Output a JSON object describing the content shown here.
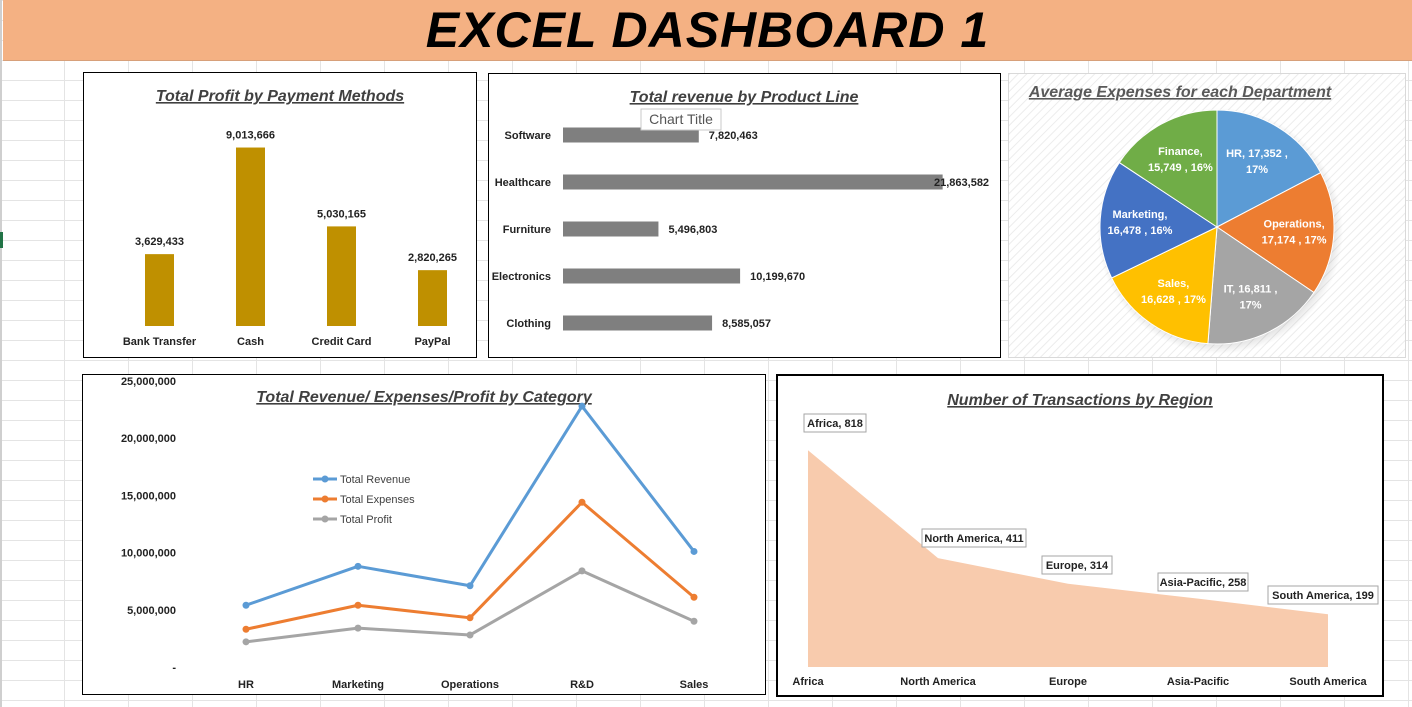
{
  "dashboard": {
    "title": "EXCEL DASHBOARD 1"
  },
  "chart_data": [
    {
      "id": "payment",
      "type": "bar",
      "title": "Total  Profit by Payment Methods",
      "categories": [
        "Bank Transfer",
        "Cash",
        "Credit Card",
        "PayPal"
      ],
      "values": [
        3629433,
        9013666,
        5030165,
        2820265
      ],
      "value_labels": [
        "3,629,433",
        "9,013,666",
        "5,030,165",
        "2,820,265"
      ],
      "color": "#bf9000",
      "ylim": [
        0,
        10000000
      ]
    },
    {
      "id": "product",
      "type": "bar",
      "orientation": "horizontal",
      "title": "Total revenue by Product Line",
      "categories": [
        "Software",
        "Healthcare",
        "Furniture",
        "Electronics",
        "Clothing"
      ],
      "values": [
        7820463,
        21863582,
        5496803,
        10199670,
        8585057
      ],
      "value_labels": [
        "7,820,463",
        "21,863,582",
        "5,496,803",
        "10,199,670",
        "8,585,057"
      ],
      "color": "#7f7f7f",
      "xlim": [
        0,
        22000000
      ],
      "tooltip": "Chart Title"
    },
    {
      "id": "department",
      "type": "pie",
      "title": "Average Expenses for each Department",
      "slices": [
        {
          "name": "HR",
          "value": 17352,
          "label_line1": "HR,  17,352 ,",
          "label_line2": "17%",
          "color": "#5b9bd5"
        },
        {
          "name": "Operations",
          "value": 17174,
          "label_line1": "Operations,",
          "label_line2": "17,174 , 17%",
          "color": "#ed7d31"
        },
        {
          "name": "IT",
          "value": 16811,
          "label_line1": "IT,  16,811 ,",
          "label_line2": "17%",
          "color": "#a5a5a5"
        },
        {
          "name": "Sales",
          "value": 16628,
          "label_line1": "Sales,",
          "label_line2": "16,628 , 17%",
          "color": "#ffc000"
        },
        {
          "name": "Marketing",
          "value": 16478,
          "label_line1": "Marketing,",
          "label_line2": "16,478 , 16%",
          "color": "#4472c4"
        },
        {
          "name": "Finance",
          "value": 15749,
          "label_line1": "Finance,",
          "label_line2": "15,749 , 16%",
          "color": "#70ad47"
        }
      ]
    },
    {
      "id": "category",
      "type": "line",
      "title": "Total Revenue/ Expenses/Profit by Category",
      "categories": [
        "HR",
        "Marketing",
        "Operations",
        "R&D",
        "Sales"
      ],
      "series": [
        {
          "name": "Total Revenue",
          "values": [
            5400000,
            8800000,
            7100000,
            22800000,
            10100000
          ],
          "color": "#5b9bd5"
        },
        {
          "name": "Total Expenses",
          "values": [
            3300000,
            5400000,
            4300000,
            14400000,
            6100000
          ],
          "color": "#ed7d31"
        },
        {
          "name": "Total Profit",
          "values": [
            2200000,
            3400000,
            2800000,
            8400000,
            4000000
          ],
          "color": "#a5a5a5"
        }
      ],
      "ylim": [
        0,
        25000000
      ],
      "yticks": [
        0,
        5000000,
        10000000,
        15000000,
        20000000,
        25000000
      ],
      "ytick_labels": [
        "-",
        "5,000,000",
        "10,000,000",
        "15,000,000",
        "20,000,000",
        "25,000,000"
      ],
      "legend": "left"
    },
    {
      "id": "region",
      "type": "area",
      "title": "Number of Transactions by Region",
      "categories": [
        "Africa",
        "North America",
        "Europe",
        "Asia-Pacific",
        "South America"
      ],
      "values": [
        818,
        411,
        314,
        258,
        199
      ],
      "data_labels": [
        "Africa, 818",
        "North America, 411",
        "Europe, 314",
        "Asia-Pacific, 258",
        "South America, 199"
      ],
      "color": "#f8cbad",
      "ylim": [
        0,
        1000
      ]
    }
  ]
}
